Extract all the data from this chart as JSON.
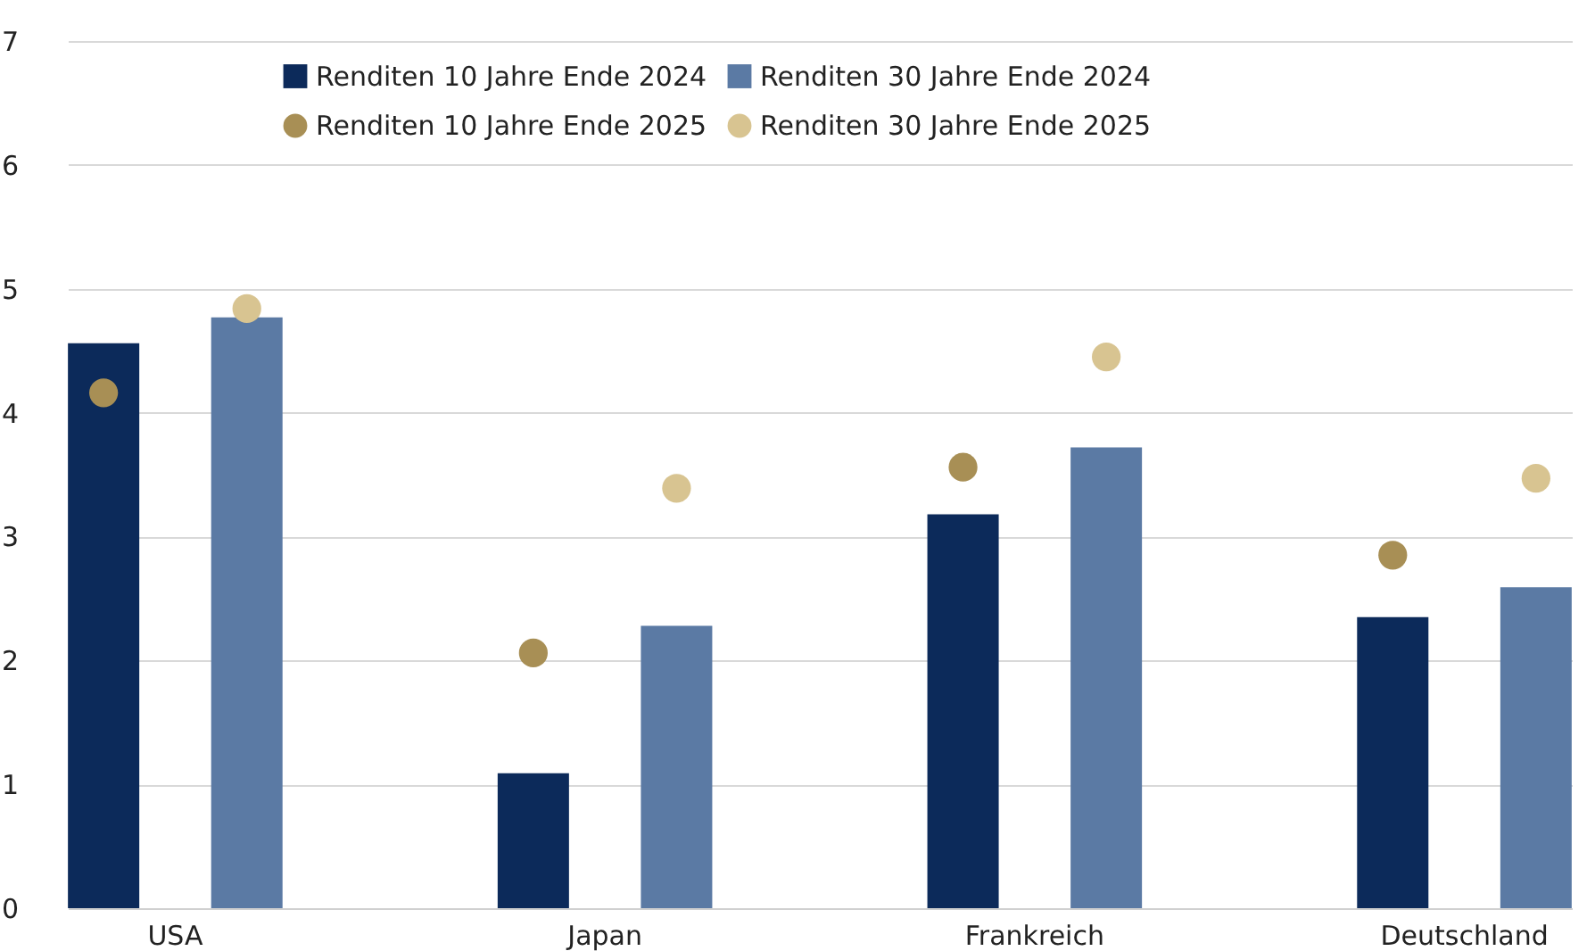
{
  "chart_data": {
    "type": "bar",
    "categories": [
      "USA",
      "Japan",
      "Frankreich",
      "Deutschland"
    ],
    "series": [
      {
        "name": "Renditen 10 Jahre Ende 2024",
        "type": "bar",
        "color": "#0c2a5a",
        "values": [
          4.56,
          1.09,
          3.18,
          2.35
        ]
      },
      {
        "name": "Renditen 30 Jahre Ende 2024",
        "type": "bar",
        "color": "#5b7aa4",
        "values": [
          4.77,
          2.28,
          3.72,
          2.59
        ]
      },
      {
        "name": "Renditen 10 Jahre Ende 2025",
        "type": "scatter",
        "color": "#a88f55",
        "values": [
          4.16,
          2.06,
          3.56,
          2.85
        ]
      },
      {
        "name": "Renditen 30 Jahre Ende 2025",
        "type": "scatter",
        "color": "#d8c491",
        "values": [
          4.84,
          3.39,
          4.45,
          3.47
        ]
      }
    ],
    "ylim": [
      0,
      7
    ],
    "yticks": [
      0,
      1,
      2,
      3,
      4,
      5,
      6,
      7
    ],
    "grid": "y",
    "legend": "top",
    "marker": "circle"
  }
}
